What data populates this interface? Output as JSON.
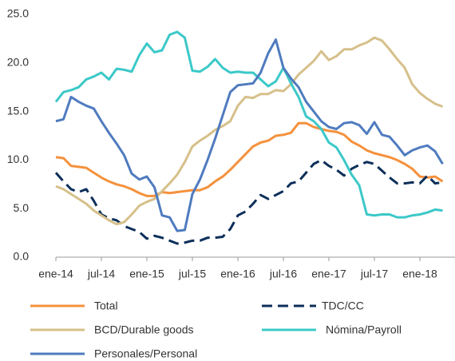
{
  "chart_data": {
    "type": "line",
    "categories": [
      "ene-14",
      null,
      null,
      null,
      null,
      null,
      "jul-14",
      null,
      null,
      null,
      null,
      null,
      "ene-15",
      null,
      null,
      null,
      null,
      null,
      "jul-15",
      null,
      null,
      null,
      null,
      null,
      "ene-16",
      null,
      null,
      null,
      null,
      null,
      "jul-16",
      null,
      null,
      null,
      null,
      null,
      "ene-17",
      null,
      null,
      null,
      null,
      null,
      "jul-17",
      null,
      null,
      null,
      null,
      null,
      "ene-18",
      null,
      null,
      null
    ],
    "series": [
      {
        "name": "Total",
        "color": "#f4913c",
        "dashed": false,
        "values": [
          10.3,
          10.2,
          9.4,
          9.3,
          9.2,
          8.7,
          8.2,
          7.8,
          7.5,
          7.3,
          7.0,
          6.6,
          6.3,
          6.3,
          6.7,
          6.6,
          6.7,
          6.8,
          6.9,
          6.9,
          7.2,
          7.8,
          8.3,
          9.0,
          9.8,
          10.6,
          11.4,
          11.8,
          12.0,
          12.5,
          12.6,
          12.8,
          13.8,
          13.8,
          13.4,
          13.2,
          13.0,
          12.9,
          12.6,
          11.9,
          11.5,
          11.0,
          10.7,
          10.5,
          10.3,
          10.0,
          9.6,
          9.1,
          8.3,
          8.2,
          8.3,
          7.8
        ]
      },
      {
        "name": "TDC/CC",
        "color": "#0d2f5a",
        "dashed": true,
        "values": [
          8.7,
          7.8,
          7.0,
          6.7,
          7.0,
          5.8,
          4.4,
          4.0,
          3.8,
          3.2,
          2.9,
          2.6,
          1.9,
          2.2,
          2.0,
          1.7,
          1.4,
          1.5,
          1.7,
          1.7,
          2.0,
          2.0,
          2.1,
          2.9,
          4.3,
          4.7,
          5.5,
          6.4,
          6.0,
          6.4,
          6.8,
          7.6,
          7.8,
          8.7,
          9.6,
          10.0,
          9.4,
          9.0,
          8.4,
          9.1,
          9.5,
          9.8,
          9.6,
          8.9,
          8.2,
          7.6,
          7.6,
          7.7,
          7.6,
          8.4,
          7.6,
          7.7
        ]
      },
      {
        "name": "BCD/Durable goods",
        "color": "#d6c08a",
        "dashed": false,
        "values": [
          7.3,
          7.0,
          6.5,
          6.0,
          5.5,
          4.8,
          4.3,
          3.8,
          3.4,
          3.6,
          4.4,
          5.3,
          5.7,
          6.0,
          6.8,
          7.6,
          8.5,
          9.8,
          11.4,
          12.0,
          12.5,
          13.1,
          13.5,
          14.0,
          15.6,
          16.5,
          16.4,
          16.8,
          16.8,
          17.2,
          17.1,
          17.8,
          18.8,
          19.5,
          20.2,
          21.2,
          20.3,
          20.7,
          21.4,
          21.4,
          21.8,
          22.1,
          22.6,
          22.3,
          21.4,
          20.4,
          19.5,
          17.8,
          16.9,
          16.3,
          15.8,
          15.5
        ]
      },
      {
        "name": "Nómina/Payroll",
        "color": "#3cc8c8",
        "dashed": false,
        "values": [
          16.0,
          17.0,
          17.2,
          17.5,
          18.3,
          18.6,
          19.0,
          18.3,
          19.4,
          19.3,
          19.1,
          20.8,
          22.0,
          21.1,
          21.3,
          22.9,
          23.2,
          22.6,
          19.2,
          19.1,
          19.6,
          20.4,
          19.5,
          19.0,
          19.1,
          19.0,
          19.0,
          18.3,
          17.6,
          18.1,
          19.5,
          17.9,
          16.5,
          14.5,
          14.0,
          13.2,
          11.8,
          11.3,
          10.0,
          8.5,
          7.4,
          4.4,
          4.3,
          4.4,
          4.4,
          4.1,
          4.1,
          4.3,
          4.4,
          4.6,
          4.9,
          4.8
        ]
      },
      {
        "name": "Personales/Personal",
        "color": "#4f7bbf",
        "dashed": false,
        "values": [
          14.0,
          14.2,
          16.5,
          16.0,
          15.6,
          15.3,
          14.0,
          12.8,
          11.7,
          10.5,
          8.6,
          8.0,
          8.3,
          7.2,
          4.3,
          4.1,
          2.7,
          2.8,
          6.5,
          8.0,
          10.0,
          12.2,
          14.6,
          17.0,
          17.7,
          17.8,
          17.9,
          19.0,
          21.0,
          22.4,
          19.5,
          18.4,
          17.5,
          16.0,
          15.0,
          14.0,
          13.4,
          13.2,
          13.8,
          13.9,
          13.6,
          12.7,
          13.9,
          12.6,
          12.4,
          11.5,
          10.5,
          11.0,
          11.3,
          11.5,
          10.9,
          9.6
        ]
      }
    ],
    "ylim": [
      0,
      25
    ],
    "yticks": [
      {
        "value": 0,
        "label": "0.0"
      },
      {
        "value": 5,
        "label": "5.0"
      },
      {
        "value": 10,
        "label": "10.0"
      },
      {
        "value": 15,
        "label": "15.0"
      },
      {
        "value": 20,
        "label": "20.0"
      },
      {
        "value": 25,
        "label": "25.0"
      }
    ],
    "grid": false
  }
}
